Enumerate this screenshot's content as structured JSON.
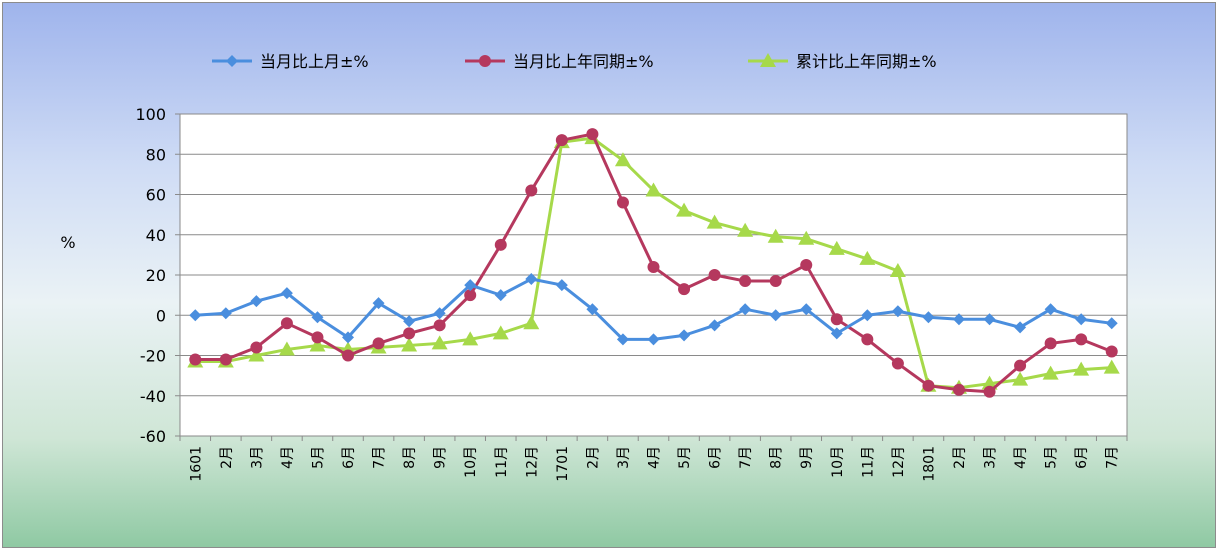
{
  "chart_data": {
    "type": "line",
    "ylabel": "%",
    "ylim": [
      -60,
      100
    ],
    "yticks": [
      100,
      80,
      60,
      40,
      20,
      0,
      -20,
      -40,
      -60
    ],
    "grid": true,
    "legend_position": "top",
    "categories": [
      "1601",
      "2月",
      "3月",
      "4月",
      "5月",
      "6月",
      "7月",
      "8月",
      "9月",
      "10月",
      "11月",
      "12月",
      "1701",
      "2月",
      "3月",
      "4月",
      "5月",
      "6月",
      "7月",
      "8月",
      "9月",
      "10月",
      "11月",
      "12月",
      "1801",
      "2月",
      "3月",
      "4月",
      "5月",
      "6月",
      "7月"
    ],
    "series": [
      {
        "name": "当月比上月±%",
        "color": "#4a8ede",
        "marker": "diamond",
        "values": [
          0,
          1,
          7,
          11,
          -1,
          -11,
          6,
          -3,
          1,
          15,
          10,
          18,
          15,
          3,
          -12,
          -12,
          -10,
          -5,
          3,
          0,
          3,
          -9,
          0,
          2,
          -1,
          -2,
          -2,
          -6,
          3,
          -2,
          -4
        ]
      },
      {
        "name": "当月比上年同期±%",
        "color": "#b5385e",
        "marker": "circle",
        "values": [
          -22,
          -22,
          -16,
          -4,
          -11,
          -20,
          -14,
          -9,
          -5,
          10,
          35,
          62,
          87,
          90,
          56,
          24,
          13,
          20,
          17,
          17,
          25,
          -2,
          -12,
          -24,
          -35,
          -37,
          -38,
          -25,
          -14,
          -12,
          -18
        ]
      },
      {
        "name": "累计比上年同期±%",
        "color": "#a6d94a",
        "marker": "triangle",
        "values": [
          -23,
          -23,
          -20,
          -17,
          -15,
          -17,
          -16,
          -15,
          -14,
          -12,
          -9,
          -4,
          86,
          88,
          77,
          62,
          52,
          46,
          42,
          39,
          38,
          33,
          28,
          22,
          -35,
          -36,
          -34,
          -32,
          -29,
          -27,
          -26
        ]
      }
    ]
  }
}
